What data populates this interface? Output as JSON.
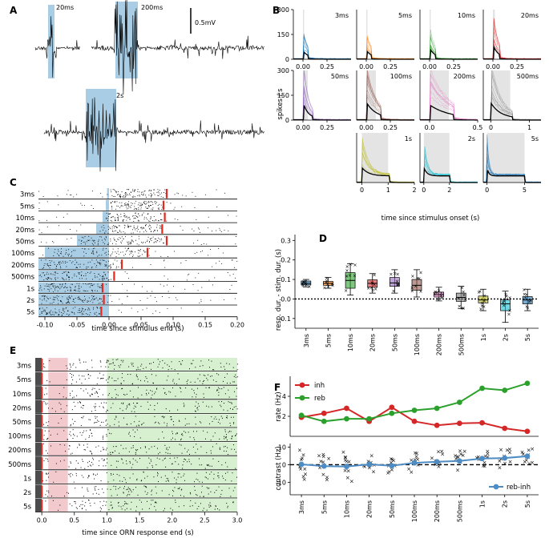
{
  "panels": {
    "A": "A",
    "B": "B",
    "C": "C",
    "D": "D",
    "E": "E",
    "F": "F"
  },
  "panel_a": {
    "traces": [
      "20ms",
      "200ms",
      "2s"
    ],
    "scalebar": "0.5mV",
    "colors": {
      "stim": "#a9cde4",
      "trace": "#000000"
    }
  },
  "chart_data": [
    {
      "id": "B",
      "type": "line",
      "ylabel": "spikes / s",
      "xlabel": "time since stimulus onset (s)",
      "ylim": [
        0,
        300
      ],
      "yticks": [
        "0",
        "150",
        "300"
      ],
      "panels": [
        {
          "label": "3ms",
          "color": "#1f77b4",
          "dur": 0.003,
          "peak": 105,
          "xlim": [
            -0.1,
            0.5
          ],
          "xticks": [
            "0.00",
            "0.25"
          ]
        },
        {
          "label": "5ms",
          "color": "#ff7f0e",
          "dur": 0.005,
          "peak": 115,
          "xlim": [
            -0.1,
            0.5
          ],
          "xticks": [
            "0.00",
            "0.25"
          ]
        },
        {
          "label": "10ms",
          "color": "#2ca02c",
          "dur": 0.01,
          "peak": 140,
          "xlim": [
            -0.1,
            0.5
          ],
          "xticks": [
            "0.00",
            "0.25"
          ]
        },
        {
          "label": "20ms",
          "color": "#d62728",
          "dur": 0.02,
          "peak": 180,
          "xlim": [
            -0.1,
            0.5
          ],
          "xticks": [
            "0.00",
            "0.25"
          ]
        },
        {
          "label": "50ms",
          "color": "#9467bd",
          "dur": 0.05,
          "peak": 225,
          "xlim": [
            -0.1,
            0.5
          ],
          "xticks": [
            "0.00",
            "0.25"
          ]
        },
        {
          "label": "100ms",
          "color": "#8c564b",
          "dur": 0.1,
          "peak": 230,
          "xlim": [
            -0.1,
            0.5
          ],
          "xticks": [
            "0.00",
            "0.25"
          ]
        },
        {
          "label": "200ms",
          "color": "#e377c2",
          "dur": 0.2,
          "peak": 200,
          "xlim": [
            -0.1,
            0.5
          ],
          "xticks": [
            "0.0",
            "0.5"
          ]
        },
        {
          "label": "500ms",
          "color": "#7f7f7f",
          "dur": 0.5,
          "peak": 225,
          "xlim": [
            -0.2,
            1.3
          ],
          "xticks": [
            "0",
            "1"
          ]
        },
        {
          "label": "1s",
          "color": "#bcbd22",
          "dur": 1.0,
          "peak": 200,
          "xlim": [
            -0.2,
            2.0
          ],
          "xticks": [
            "0",
            "1",
            "2"
          ]
        },
        {
          "label": "2s",
          "color": "#17becf",
          "dur": 2.0,
          "peak": 200,
          "xlim": [
            -0.3,
            4.2
          ],
          "xticks": [
            "0",
            "2"
          ]
        },
        {
          "label": "5s",
          "color": "#1f77b4",
          "dur": 5.0,
          "peak": 190,
          "xlim": [
            -0.5,
            7.2
          ],
          "xticks": [
            "0",
            "5"
          ]
        }
      ]
    },
    {
      "id": "C",
      "type": "raster",
      "xlabel": "time since stimulus end (s)",
      "xlim": [
        -0.11,
        0.2
      ],
      "xticks": [
        "-0.10",
        "-0.05",
        "0.00",
        "0.05",
        "0.10",
        "0.15",
        "0.20"
      ],
      "rows": [
        {
          "label": "3ms",
          "dur": 0.003,
          "resp_end": 0.09
        },
        {
          "label": "5ms",
          "dur": 0.005,
          "resp_end": 0.085
        },
        {
          "label": "10ms",
          "dur": 0.01,
          "resp_end": 0.087
        },
        {
          "label": "20ms",
          "dur": 0.02,
          "resp_end": 0.083
        },
        {
          "label": "50ms",
          "dur": 0.05,
          "resp_end": 0.09
        },
        {
          "label": "100ms",
          "dur": 0.1,
          "resp_end": 0.06
        },
        {
          "label": "200ms",
          "dur": 0.2,
          "resp_end": 0.02
        },
        {
          "label": "500ms",
          "dur": 0.5,
          "resp_end": 0.008
        },
        {
          "label": "1s",
          "dur": 1.0,
          "resp_end": -0.01
        },
        {
          "label": "2s",
          "dur": 2.0,
          "resp_end": -0.008
        },
        {
          "label": "5s",
          "dur": 5.0,
          "resp_end": -0.012
        }
      ]
    },
    {
      "id": "D",
      "type": "box",
      "ylabel": "resp. dur. - stim. dur. (s)",
      "ylim": [
        -0.15,
        0.33
      ],
      "yticks": [
        "-0.1",
        "0.0",
        "0.1",
        "0.2",
        "0.3"
      ],
      "categories": [
        "3ms",
        "5ms",
        "10ms",
        "20ms",
        "50ms",
        "100ms",
        "200ms",
        "500ms",
        "1s",
        "2s",
        "5s"
      ],
      "colors": [
        "#1f77b4",
        "#ff7f0e",
        "#2ca02c",
        "#d62728",
        "#9467bd",
        "#8c564b",
        "#e377c2",
        "#7f7f7f",
        "#bcbd22",
        "#17becf",
        "#1f77b4"
      ],
      "boxes": [
        {
          "q1": 0.072,
          "med": 0.08,
          "q3": 0.092,
          "lo": 0.062,
          "hi": 0.1
        },
        {
          "q1": 0.07,
          "med": 0.08,
          "q3": 0.09,
          "lo": 0.055,
          "hi": 0.11
        },
        {
          "q1": 0.055,
          "med": 0.095,
          "q3": 0.135,
          "lo": 0.02,
          "hi": 0.18
        },
        {
          "q1": 0.06,
          "med": 0.08,
          "q3": 0.098,
          "lo": 0.03,
          "hi": 0.13
        },
        {
          "q1": 0.065,
          "med": 0.082,
          "q3": 0.11,
          "lo": 0.03,
          "hi": 0.15
        },
        {
          "q1": 0.045,
          "med": 0.07,
          "q3": 0.1,
          "lo": 0.01,
          "hi": 0.15
        },
        {
          "q1": 0.01,
          "med": 0.022,
          "q3": 0.035,
          "lo": -0.01,
          "hi": 0.06
        },
        {
          "q1": -0.012,
          "med": 0.008,
          "q3": 0.03,
          "lo": -0.05,
          "hi": 0.065
        },
        {
          "q1": -0.02,
          "med": -0.005,
          "q3": 0.015,
          "lo": -0.06,
          "hi": 0.05
        },
        {
          "q1": -0.06,
          "med": -0.025,
          "q3": -0.005,
          "lo": -0.12,
          "hi": 0.04
        },
        {
          "q1": -0.025,
          "med": -0.005,
          "q3": 0.012,
          "lo": -0.06,
          "hi": 0.05
        }
      ],
      "reference_line": 0.0
    },
    {
      "id": "E",
      "type": "raster",
      "xlabel": "time since ORN response end (s)",
      "xlim": [
        -0.1,
        3.0
      ],
      "xticks": [
        "0.0",
        "0.5",
        "1.0",
        "1.5",
        "2.0",
        "2.5",
        "3.0"
      ],
      "rows": [
        "3ms",
        "5ms",
        "10ms",
        "20ms",
        "50ms",
        "100ms",
        "200ms",
        "500ms",
        "1s",
        "2s",
        "5s"
      ],
      "windows": [
        {
          "name": "inh",
          "from": 0.1,
          "to": 0.4,
          "color": "#f2c9cc"
        },
        {
          "name": "reb",
          "from": 1.0,
          "to": 3.0,
          "color": "#d6f0d0"
        }
      ]
    },
    {
      "id": "F-top",
      "type": "line",
      "ylabel": "rate (Hz)",
      "ylim": [
        0,
        6
      ],
      "yticks": [
        "2",
        "4"
      ],
      "categories": [
        "3ms",
        "5ms",
        "10ms",
        "20ms",
        "50ms",
        "100ms",
        "200ms",
        "500ms",
        "1s",
        "2s",
        "5s"
      ],
      "series": [
        {
          "name": "inh",
          "color": "#d62728",
          "values": [
            1.9,
            2.3,
            2.8,
            1.5,
            2.9,
            1.5,
            1.1,
            1.3,
            1.35,
            0.8,
            0.5
          ]
        },
        {
          "name": "reb",
          "color": "#2ca02c",
          "values": [
            2.1,
            1.5,
            1.75,
            1.75,
            2.3,
            2.6,
            2.8,
            3.4,
            4.8,
            4.6,
            5.3
          ]
        }
      ]
    },
    {
      "id": "F-bottom",
      "type": "scatter",
      "ylabel": "contrast (Hz)",
      "ylim": [
        -17,
        12
      ],
      "yticks": [
        "-10",
        "0",
        "10"
      ],
      "categories": [
        "3ms",
        "5ms",
        "10ms",
        "20ms",
        "50ms",
        "100ms",
        "200ms",
        "500ms",
        "1s",
        "2s",
        "5s"
      ],
      "series": [
        {
          "name": "reb-inh",
          "color": "#4e8cc4",
          "values": [
            0.2,
            -0.8,
            -1.0,
            0.2,
            -0.6,
            1.1,
            1.7,
            2.1,
            3.5,
            3.8,
            4.8
          ]
        }
      ],
      "reference_line": 0
    }
  ]
}
